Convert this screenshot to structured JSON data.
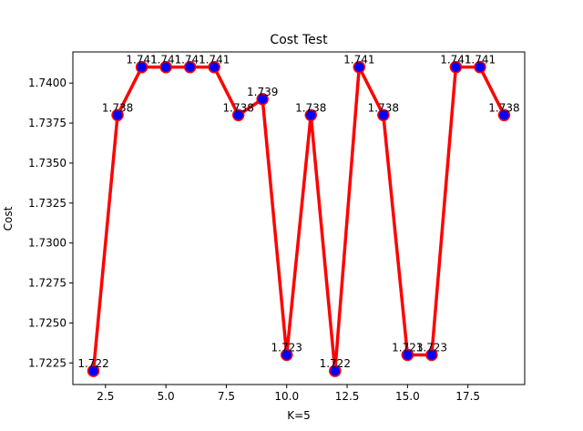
{
  "chart_data": {
    "type": "line",
    "title": "Cost Test",
    "xlabel": "K=5",
    "ylabel": "Cost",
    "x": [
      2,
      3,
      4,
      5,
      6,
      7,
      8,
      9,
      10,
      11,
      12,
      13,
      14,
      15,
      16,
      17,
      18,
      19
    ],
    "series": [
      {
        "values": [
          1.722,
          1.738,
          1.741,
          1.741,
          1.741,
          1.741,
          1.738,
          1.739,
          1.723,
          1.738,
          1.722,
          1.741,
          1.738,
          1.723,
          1.723,
          1.741,
          1.741,
          1.738
        ],
        "line_color": "#ff0000",
        "marker_color": "#0000ff",
        "marker_edge_color": "#ff0000"
      }
    ],
    "data_labels": [
      "1.722",
      "1.738",
      "1.741",
      "1.741",
      "1.741",
      "1.741",
      "1.738",
      "1.739",
      "1.723",
      "1.738",
      "1.722",
      "1.741",
      "1.738",
      "1.723",
      "1.723",
      "1.741",
      "1.741",
      "1.738"
    ],
    "xlim": [
      1.15,
      19.85
    ],
    "ylim": [
      1.72115,
      1.74195
    ],
    "xticks": [
      "2.5",
      "5.0",
      "7.5",
      "10.0",
      "12.5",
      "15.0",
      "17.5"
    ],
    "yticks": [
      "1.7225",
      "1.7250",
      "1.7275",
      "1.7300",
      "1.7325",
      "1.7350",
      "1.7375",
      "1.7400"
    ],
    "grid": false
  }
}
